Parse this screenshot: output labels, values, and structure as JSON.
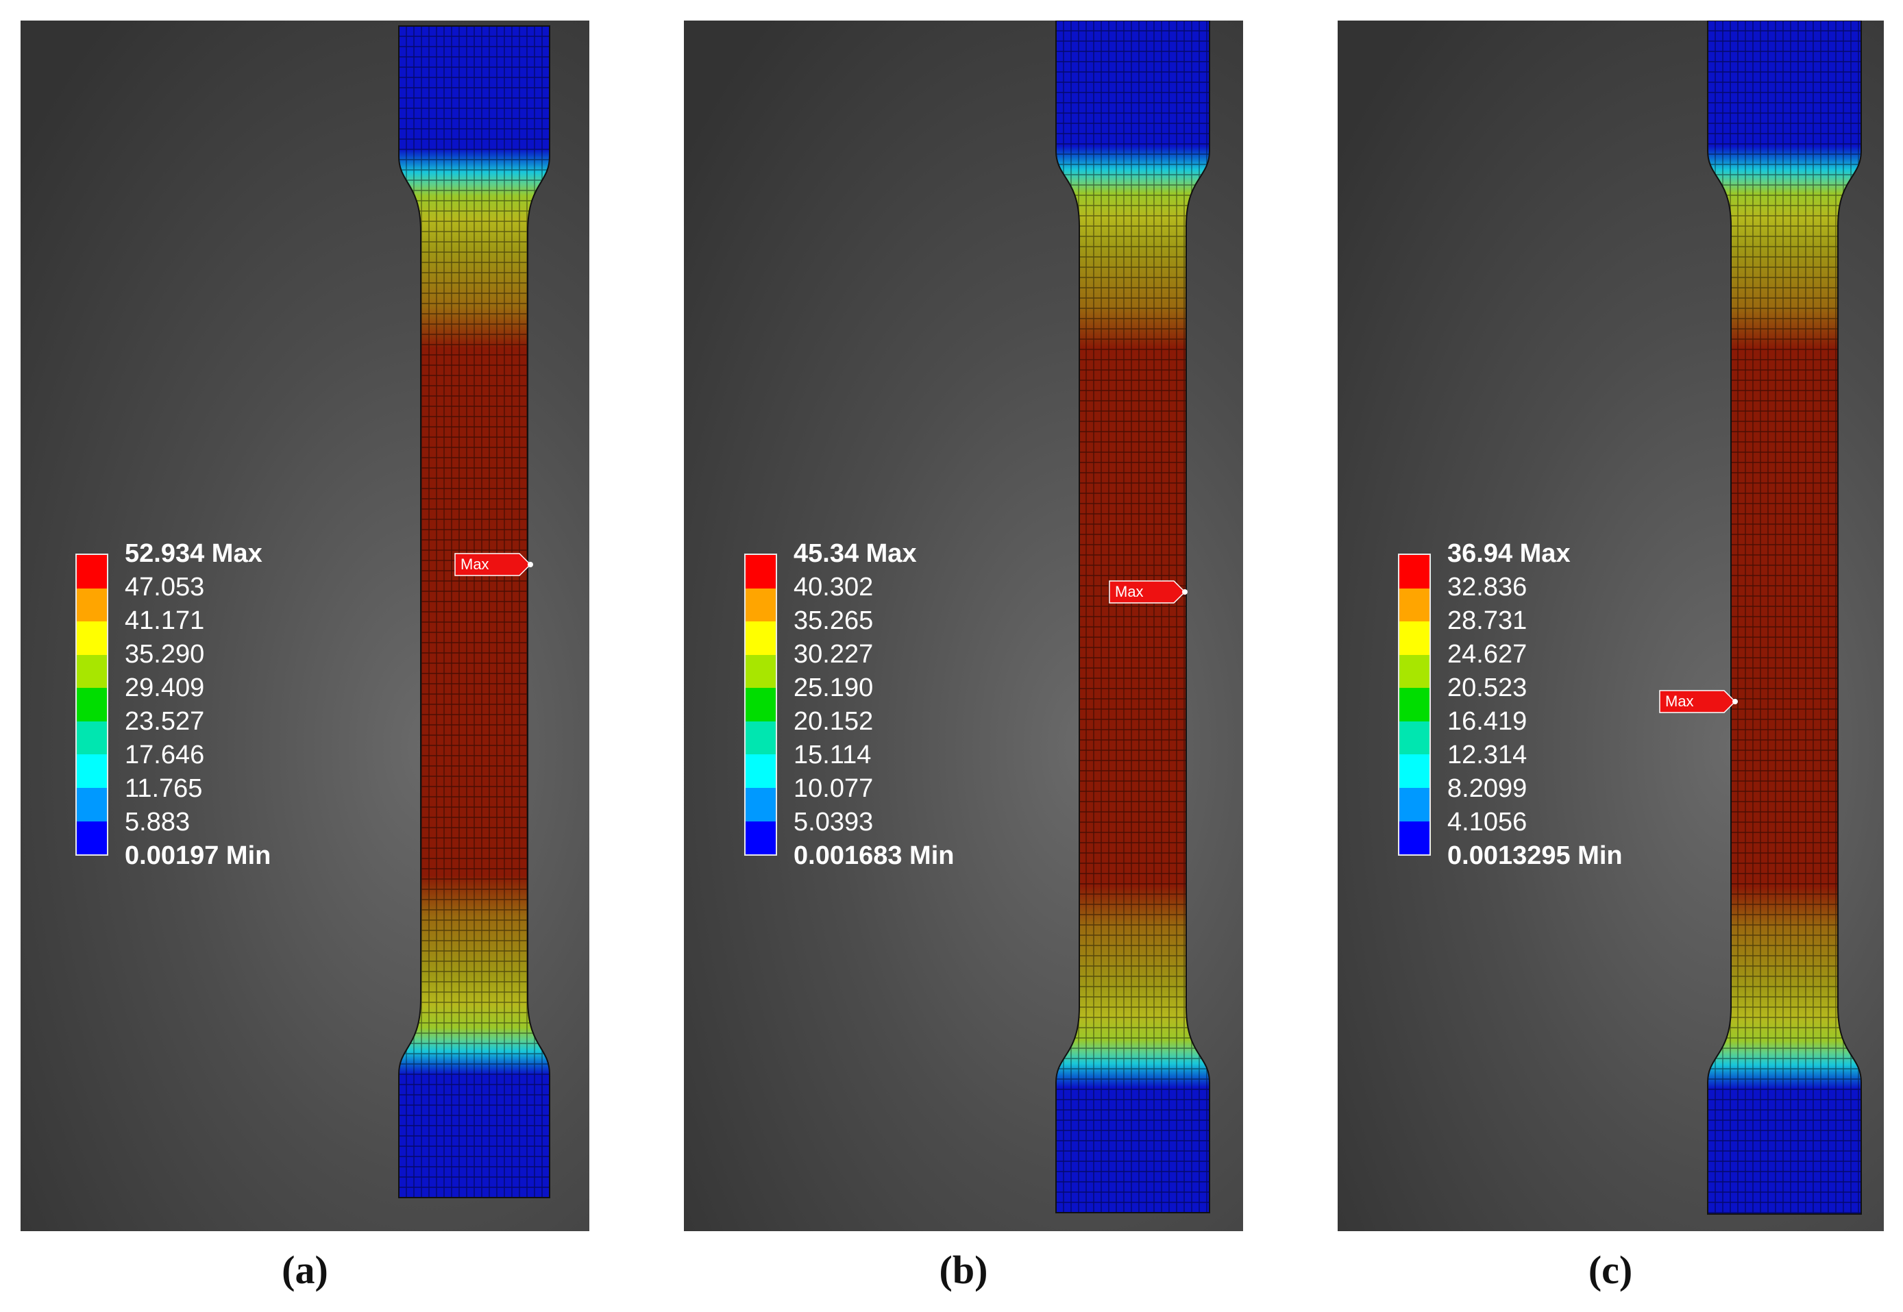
{
  "palette": [
    "#ff0000",
    "#ffa500",
    "#ffff00",
    "#a8e600",
    "#00dd00",
    "#00e6b0",
    "#00ffff",
    "#0099ff",
    "#0000ff"
  ],
  "marker_label": "Max",
  "panels": [
    {
      "caption": "(a)",
      "max_label": "52.934 Max",
      "min_label": "0.00197 Min",
      "levels": [
        "47.053",
        "41.171",
        "35.290",
        "29.409",
        "23.527",
        "17.646",
        "11.765",
        "5.883"
      ]
    },
    {
      "caption": "(b)",
      "max_label": "45.34 Max",
      "min_label": "0.001683 Min",
      "levels": [
        "40.302",
        "35.265",
        "30.227",
        "25.190",
        "20.152",
        "15.114",
        "10.077",
        "5.0393"
      ]
    },
    {
      "caption": "(c)",
      "max_label": "36.94 Max",
      "min_label": "0.0013295 Min",
      "levels": [
        "32.836",
        "28.731",
        "24.627",
        "20.523",
        "16.419",
        "12.314",
        "8.2099",
        "4.1056"
      ]
    }
  ]
}
